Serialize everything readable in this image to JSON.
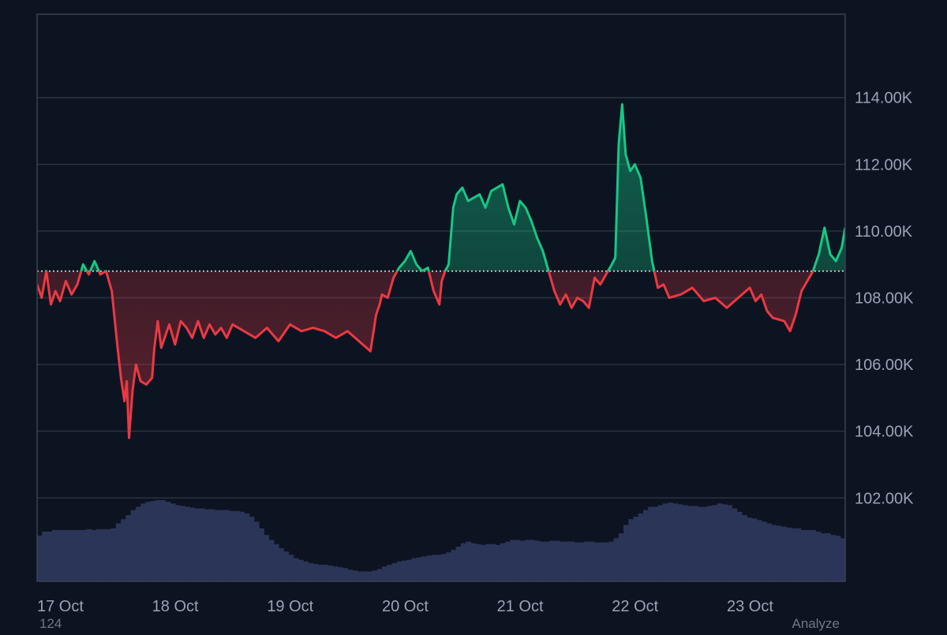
{
  "colors": {
    "background": "#0d1421",
    "grid": "#2a3242",
    "frame": "#3a4252",
    "up": "#16c784",
    "down": "#ea3943",
    "baseline": "#ffffff",
    "volume": "#2b3558",
    "tick_text": "#9aa3b5"
  },
  "footer": {
    "left_text": "124",
    "right_text": "Analyze"
  },
  "chart_data": {
    "type": "area",
    "title": "",
    "xlabel": "",
    "ylabel": "",
    "x_tick_labels": [
      "17 Oct",
      "18 Oct",
      "19 Oct",
      "20 Oct",
      "21 Oct",
      "22 Oct",
      "23 Oct"
    ],
    "y_tick_labels": [
      "102.00K",
      "104.00K",
      "106.00K",
      "108.00K",
      "110.00K",
      "112.00K",
      "114.00K"
    ],
    "y_ticks": [
      102000,
      104000,
      106000,
      108000,
      110000,
      112000,
      114000
    ],
    "ylim": [
      99500,
      116500
    ],
    "x_range_days": [
      0,
      7.03
    ],
    "baseline": 108800,
    "grid": true,
    "legend": "none",
    "series": [
      {
        "x": [
          0,
          0.04,
          0.08,
          0.12,
          0.16,
          0.2,
          0.25,
          0.3,
          0.35,
          0.4,
          0.45,
          0.5,
          0.55,
          0.6,
          0.65,
          0.7,
          0.73,
          0.76,
          0.78,
          0.8,
          0.83,
          0.86,
          0.9,
          0.95,
          1.0,
          1.02,
          1.05,
          1.08,
          1.1,
          1.15,
          1.2,
          1.25,
          1.3,
          1.35,
          1.4,
          1.45,
          1.5,
          1.55,
          1.6,
          1.65,
          1.7,
          1.8,
          1.9,
          2.0,
          2.1,
          2.2,
          2.3,
          2.4,
          2.5,
          2.6,
          2.7,
          2.8,
          2.9,
          2.95,
          2.98,
          3.0,
          3.05,
          3.1,
          3.15,
          3.2,
          3.25,
          3.3,
          3.35,
          3.4,
          3.45,
          3.5,
          3.52,
          3.55,
          3.58,
          3.62,
          3.65,
          3.7,
          3.75,
          3.8,
          3.85,
          3.9,
          3.95,
          4.0,
          4.05,
          4.1,
          4.15,
          4.2,
          4.25,
          4.3,
          4.35,
          4.4,
          4.45,
          4.5,
          4.55,
          4.6,
          4.65,
          4.7,
          4.75,
          4.8,
          4.85,
          4.9,
          4.95,
          5.0,
          5.03,
          5.06,
          5.09,
          5.12,
          5.16,
          5.2,
          5.25,
          5.3,
          5.35,
          5.4,
          5.45,
          5.5,
          5.6,
          5.7,
          5.8,
          5.9,
          6.0,
          6.1,
          6.2,
          6.25,
          6.3,
          6.35,
          6.4,
          6.5,
          6.55,
          6.6,
          6.65,
          6.7,
          6.75,
          6.8,
          6.85,
          6.9,
          6.95,
          7.0,
          7.03
        ],
        "values": [
          108400,
          108000,
          108800,
          107800,
          108200,
          107900,
          108500,
          108100,
          108400,
          109000,
          108700,
          109100,
          108700,
          108800,
          108200,
          106500,
          105600,
          104900,
          105500,
          103800,
          105200,
          106000,
          105500,
          105400,
          105600,
          106500,
          107300,
          106500,
          106700,
          107200,
          106600,
          107300,
          107100,
          106800,
          107300,
          106800,
          107200,
          106900,
          107100,
          106800,
          107200,
          107000,
          106800,
          107100,
          106700,
          107200,
          107000,
          107100,
          107000,
          106800,
          107000,
          106700,
          106400,
          107500,
          107800,
          108100,
          108000,
          108600,
          108900,
          109100,
          109400,
          109000,
          108800,
          108900,
          108200,
          107800,
          108500,
          108800,
          109000,
          110700,
          111100,
          111300,
          110900,
          111000,
          111100,
          110700,
          111200,
          111300,
          111400,
          110700,
          110200,
          110900,
          110700,
          110300,
          109800,
          109400,
          108800,
          108200,
          107800,
          108100,
          107700,
          108000,
          107900,
          107700,
          108600,
          108400,
          108700,
          109000,
          109200,
          112600,
          113800,
          112300,
          111800,
          112000,
          111600,
          110400,
          109100,
          108300,
          108400,
          108000,
          108100,
          108300,
          107900,
          108000,
          107700,
          108000,
          108300,
          107900,
          108100,
          107600,
          107400,
          107300,
          107000,
          107500,
          108200,
          108500,
          108800,
          109300,
          110100,
          109300,
          109100,
          109500,
          110100
        ],
        "name": ""
      }
    ],
    "volume_profile": [
      0.55,
      0.6,
      0.6,
      0.62,
      0.62,
      0.62,
      0.62,
      0.62,
      0.62,
      0.62,
      0.63,
      0.62,
      0.63,
      0.63,
      0.63,
      0.64,
      0.7,
      0.75,
      0.8,
      0.86,
      0.9,
      0.94,
      0.96,
      0.97,
      0.98,
      0.98,
      0.96,
      0.94,
      0.92,
      0.91,
      0.9,
      0.89,
      0.88,
      0.88,
      0.87,
      0.87,
      0.86,
      0.86,
      0.86,
      0.85,
      0.85,
      0.84,
      0.82,
      0.78,
      0.72,
      0.64,
      0.56,
      0.5,
      0.45,
      0.4,
      0.36,
      0.32,
      0.28,
      0.26,
      0.24,
      0.22,
      0.21,
      0.2,
      0.2,
      0.19,
      0.18,
      0.17,
      0.16,
      0.14,
      0.13,
      0.12,
      0.12,
      0.12,
      0.13,
      0.15,
      0.18,
      0.2,
      0.22,
      0.24,
      0.25,
      0.26,
      0.28,
      0.29,
      0.3,
      0.31,
      0.32,
      0.32,
      0.33,
      0.35,
      0.38,
      0.42,
      0.46,
      0.48,
      0.46,
      0.45,
      0.44,
      0.45,
      0.45,
      0.44,
      0.46,
      0.48,
      0.5,
      0.5,
      0.49,
      0.5,
      0.5,
      0.49,
      0.48,
      0.48,
      0.49,
      0.49,
      0.48,
      0.48,
      0.48,
      0.47,
      0.47,
      0.48,
      0.48,
      0.47,
      0.47,
      0.47,
      0.48,
      0.52,
      0.58,
      0.68,
      0.75,
      0.78,
      0.82,
      0.86,
      0.9,
      0.9,
      0.92,
      0.94,
      0.95,
      0.94,
      0.93,
      0.92,
      0.91,
      0.91,
      0.9,
      0.9,
      0.91,
      0.92,
      0.94,
      0.93,
      0.92,
      0.88,
      0.84,
      0.8,
      0.77,
      0.76,
      0.74,
      0.72,
      0.7,
      0.68,
      0.67,
      0.66,
      0.65,
      0.64,
      0.64,
      0.62,
      0.62,
      0.62,
      0.6,
      0.58,
      0.58,
      0.56,
      0.55,
      0.52
    ]
  }
}
